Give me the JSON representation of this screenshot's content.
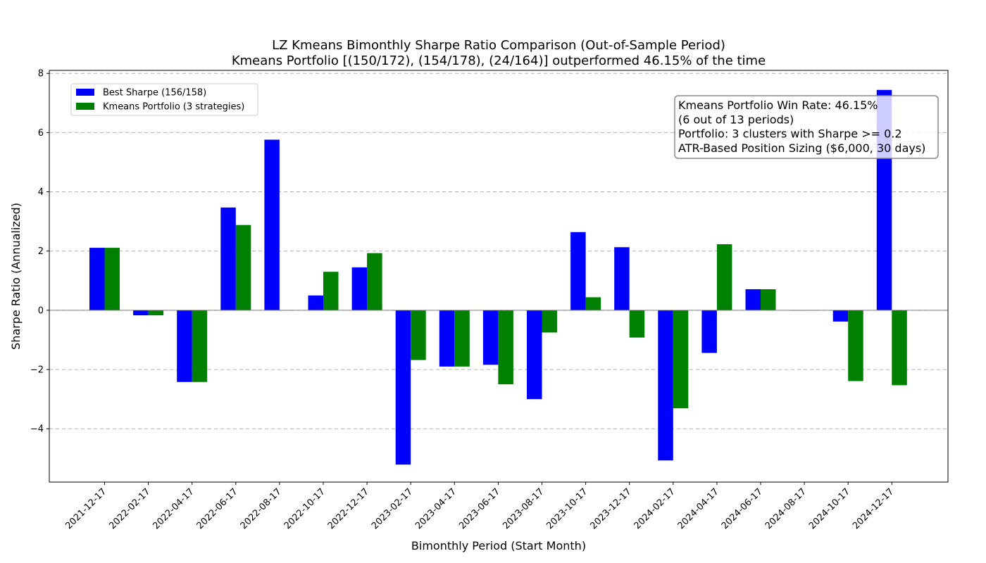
{
  "chart_data": {
    "type": "bar",
    "title": "LZ Kmeans Bimonthly Sharpe Ratio Comparison (Out-of-Sample Period)",
    "subtitle": "Kmeans Portfolio [(150/172), (154/178), (24/164)] outperformed 46.15% of the time",
    "xlabel": "Bimonthly Period (Start Month)",
    "ylabel": "Sharpe Ratio (Annualized)",
    "ylim": [
      -5.8,
      8.1
    ],
    "yticks": [
      -4,
      -2,
      0,
      2,
      4,
      6,
      8
    ],
    "ytick_labels": [
      "−4",
      "−2",
      "0",
      "2",
      "4",
      "6",
      "8"
    ],
    "grid": "y-dashed",
    "legend_position": "upper-left",
    "categories": [
      "2021-12-17",
      "2022-02-17",
      "2022-04-17",
      "2022-06-17",
      "2022-08-17",
      "2022-10-17",
      "2022-12-17",
      "2023-02-17",
      "2023-04-17",
      "2023-06-17",
      "2023-08-17",
      "2023-10-17",
      "2023-12-17",
      "2024-02-17",
      "2024-04-17",
      "2024-06-17",
      "2024-08-17",
      "2024-10-17",
      "2024-12-17"
    ],
    "series": [
      {
        "name": "Best Sharpe (156/158)",
        "color": "#0000ff",
        "values": [
          2.11,
          -0.17,
          -2.42,
          3.47,
          5.76,
          0.5,
          1.45,
          -5.21,
          -1.9,
          -1.84,
          -3.0,
          2.64,
          2.13,
          -5.07,
          -1.44,
          0.71,
          0.0,
          -0.38,
          7.44
        ]
      },
      {
        "name": "Kmeans Portfolio (3 strategies)",
        "color": "#008000",
        "values": [
          2.11,
          -0.17,
          -2.42,
          2.88,
          0.0,
          1.3,
          1.93,
          -1.68,
          -1.9,
          -2.5,
          -0.75,
          0.44,
          -0.92,
          -3.31,
          2.23,
          0.71,
          0.0,
          -2.39,
          -2.53
        ]
      }
    ],
    "annotation_lines": [
      "Kmeans Portfolio Win Rate: 46.15%",
      "(6 out of 13 periods)",
      "Portfolio: 3 clusters with Sharpe >= 0.2",
      "ATR-Based Position Sizing ($6,000, 30 days)"
    ],
    "annotation_position": "top-right"
  }
}
